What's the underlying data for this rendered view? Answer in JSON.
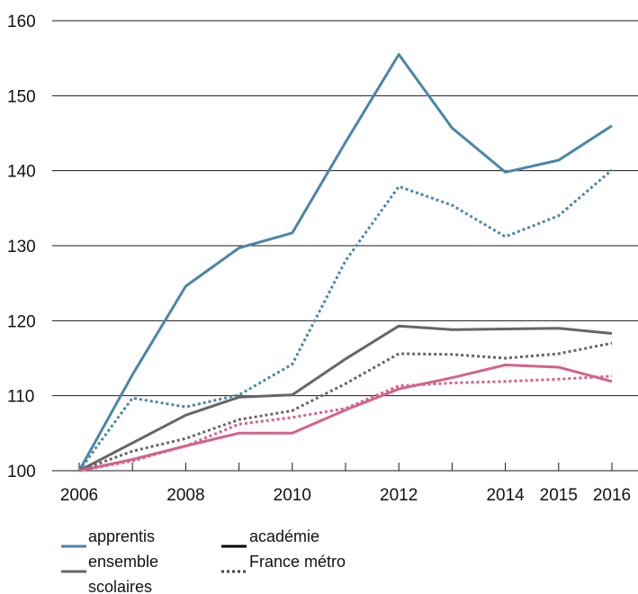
{
  "chart_data": {
    "type": "line",
    "x": [
      2006,
      2007,
      2008,
      2009,
      2010,
      2011,
      2012,
      2013,
      2014,
      2015,
      2016
    ],
    "x_tick_labels": [
      "2006",
      "2008",
      "2010",
      "2012",
      "2014",
      "2015",
      "2016"
    ],
    "x_tick_values": [
      2006,
      2008,
      2010,
      2012,
      2014,
      2015,
      2016
    ],
    "ylim": [
      100,
      160
    ],
    "y_ticks": [
      100,
      110,
      120,
      130,
      140,
      150,
      160
    ],
    "grid": true,
    "series": [
      {
        "name": "apprentis",
        "scope": "académie",
        "color": "#4a86a8",
        "dash": "solid",
        "values": [
          100,
          112.8,
          124.6,
          129.7,
          131.7,
          143.8,
          155.5,
          145.7,
          139.8,
          141.4,
          146.0
        ]
      },
      {
        "name": "apprentis",
        "scope": "France métro",
        "color": "#4a86a8",
        "dash": "dotted",
        "values": [
          100,
          109.7,
          108.5,
          110.1,
          114.2,
          128.0,
          137.9,
          135.4,
          131.2,
          134.0,
          140.1
        ]
      },
      {
        "name": "ensemble",
        "scope": "académie",
        "color": "#666666",
        "dash": "solid",
        "values": [
          100,
          103.7,
          107.4,
          109.8,
          110.1,
          114.9,
          119.3,
          118.8,
          118.9,
          119.0,
          118.3
        ]
      },
      {
        "name": "ensemble",
        "scope": "France métro",
        "color": "#666666",
        "dash": "dotted",
        "values": [
          100,
          102.6,
          104.3,
          106.8,
          108.0,
          111.6,
          115.6,
          115.5,
          115.0,
          115.6,
          117.0
        ]
      },
      {
        "name": "scolaires",
        "scope": "académie",
        "color": "#d4628a",
        "dash": "solid",
        "values": [
          100,
          101.5,
          103.3,
          105.0,
          105.0,
          108.1,
          110.9,
          112.4,
          114.1,
          113.8,
          111.9
        ]
      },
      {
        "name": "scolaires",
        "scope": "France métro",
        "color": "#d4628a",
        "dash": "dotted",
        "values": [
          100,
          101.3,
          103.3,
          106.2,
          107.1,
          108.3,
          111.3,
          111.7,
          111.9,
          112.2,
          112.6
        ]
      }
    ],
    "legend": {
      "placement": "bottom-left",
      "series_items": [
        {
          "label": "apprentis",
          "color": "#4a86a8"
        },
        {
          "label": "ensemble",
          "color": "#666666"
        },
        {
          "label": "scolaires",
          "color": "#d4628a"
        }
      ],
      "style_items": [
        {
          "label": "académie",
          "dash": "solid",
          "color": "#000000"
        },
        {
          "label": "France métro",
          "dash": "dotted",
          "color": "#444444"
        }
      ]
    }
  }
}
